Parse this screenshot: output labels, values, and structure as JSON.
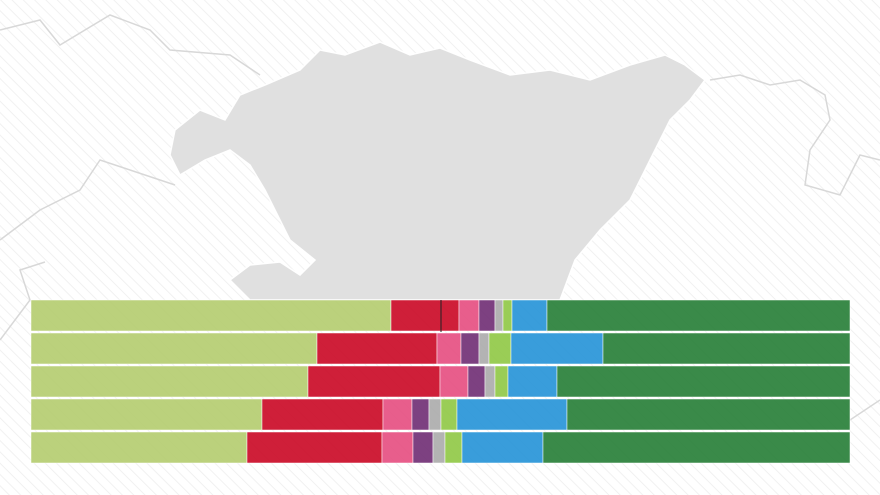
{
  "chart_data": {
    "type": "bar",
    "orientation": "horizontal",
    "stacked": true,
    "categories": [
      null,
      null,
      null,
      null,
      null
    ],
    "xlim": [
      0,
      819
    ],
    "series": [
      {
        "color": "#b2cb6a",
        "values": [
          360,
          286,
          277,
          231,
          216
        ]
      },
      {
        "color": "#c8001e",
        "values": [
          68,
          120,
          132,
          121,
          135
        ]
      },
      {
        "color": "#e5487c",
        "values": [
          20,
          24,
          28,
          29,
          31
        ]
      },
      {
        "color": "#6b2770",
        "values": [
          16,
          18,
          17,
          17,
          20
        ]
      },
      {
        "color": "#a9a9a9",
        "values": [
          8,
          10,
          10,
          12,
          12
        ]
      },
      {
        "color": "#8cc63f",
        "values": [
          9,
          22,
          13,
          16,
          17
        ]
      },
      {
        "color": "#1e8fd6",
        "values": [
          35,
          92,
          49,
          110,
          81
        ]
      },
      {
        "color": "#1f7a30",
        "values": [
          303,
          247,
          293,
          283,
          307
        ]
      }
    ]
  }
}
